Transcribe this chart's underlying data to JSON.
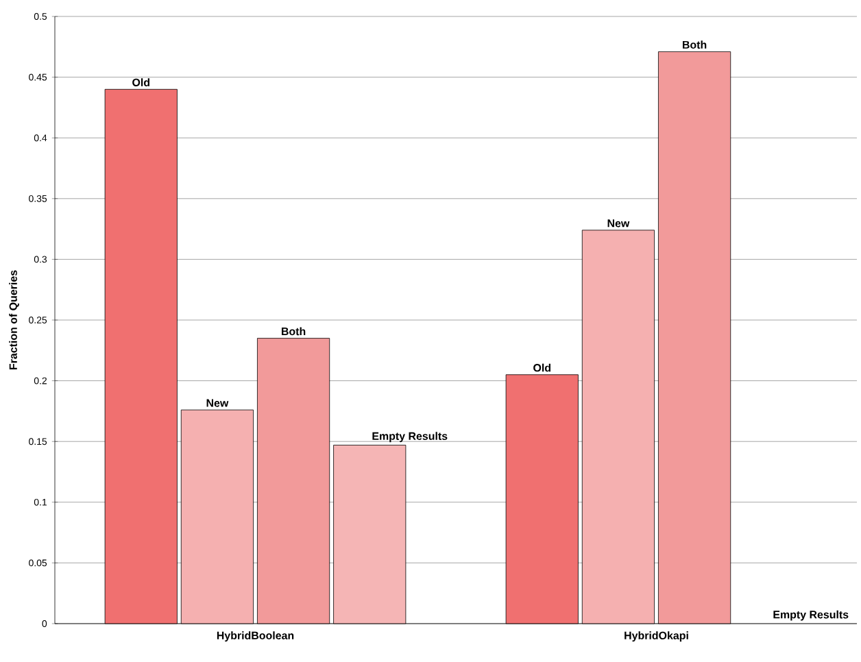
{
  "chart_data": {
    "type": "bar",
    "ylabel": "Fraction of Queries",
    "categories": [
      "HybridBoolean",
      "HybridOkapi"
    ],
    "series": [
      {
        "name": "Old",
        "color": "#f07070",
        "values": [
          0.44,
          0.205
        ]
      },
      {
        "name": "New",
        "color": "#f5b0b0",
        "values": [
          0.176,
          0.324
        ]
      },
      {
        "name": "Both",
        "color": "#f29a9a",
        "values": [
          0.235,
          0.471
        ]
      },
      {
        "name": "Empty Results",
        "color": "#f5b5b5",
        "values": [
          0.147,
          0
        ]
      }
    ],
    "ylim": [
      0,
      0.5
    ],
    "yticks": [
      0,
      0.05,
      0.1,
      0.15,
      0.2,
      0.25,
      0.3,
      0.35,
      0.4,
      0.45,
      0.5
    ],
    "grid": "y"
  }
}
